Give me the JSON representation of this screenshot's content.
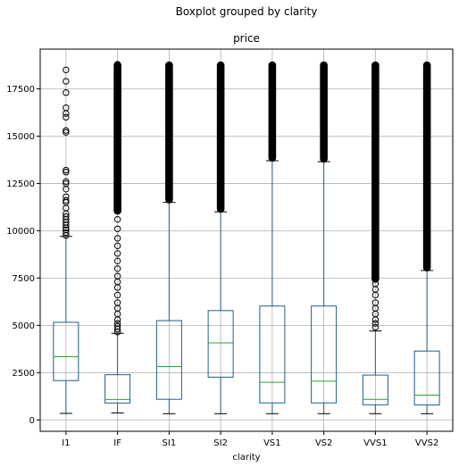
{
  "chart_data": {
    "type": "boxplot",
    "suptitle": "Boxplot grouped by clarity",
    "title": "price",
    "xlabel": "clarity",
    "ylabel": "",
    "ylim": [
      -600,
      19600
    ],
    "yticks": [
      0,
      2500,
      5000,
      7500,
      10000,
      12500,
      15000,
      17500
    ],
    "grid": true,
    "colors": {
      "box": "#1f5f8b",
      "median": "#2ca02c",
      "grid": "#b0b0b0",
      "axis": "#000000"
    },
    "categories": [
      "I1",
      "IF",
      "SI1",
      "SI2",
      "VS1",
      "VS2",
      "VVS1",
      "VVS2"
    ],
    "boxes": [
      {
        "whislo": 345,
        "q1": 2080,
        "med": 3340,
        "q3": 5160,
        "whishi": 9700,
        "outliers": [
          9750,
          9900,
          10050,
          10150,
          10300,
          10450,
          10600,
          10750,
          10900,
          11200,
          11500,
          11600,
          11800,
          12200,
          12500,
          12600,
          13100,
          13200,
          15200,
          15300,
          16000,
          16200,
          16500,
          17300,
          17900,
          18500
        ],
        "dense_from": null
      },
      {
        "whislo": 370,
        "q1": 895,
        "med": 1080,
        "q3": 2390,
        "whishi": 4580,
        "outliers": [
          4650,
          4800,
          4950,
          5100,
          5300,
          5600,
          5900,
          6200,
          6600,
          7000,
          7300,
          7600,
          8000,
          8400,
          8800,
          9200,
          9600,
          10100,
          10600,
          11100,
          11700,
          12300,
          12900,
          13500,
          14100,
          14800,
          15400,
          16000,
          16600,
          17100,
          17600,
          18000,
          18300,
          18600,
          18800
        ],
        "dense_from": 11000
      },
      {
        "whislo": 330,
        "q1": 1090,
        "med": 2820,
        "q3": 5250,
        "whishi": 11500,
        "outliers": [
          16000
        ],
        "dense_from": 11600
      },
      {
        "whislo": 330,
        "q1": 2260,
        "med": 4070,
        "q3": 5780,
        "whishi": 11000,
        "outliers": [],
        "dense_from": 11100
      },
      {
        "whislo": 330,
        "q1": 900,
        "med": 1990,
        "q3": 6020,
        "whishi": 13700,
        "outliers": [],
        "dense_from": 13800
      },
      {
        "whislo": 330,
        "q1": 900,
        "med": 2050,
        "q3": 6020,
        "whishi": 13650,
        "outliers": [],
        "dense_from": 13750
      },
      {
        "whislo": 330,
        "q1": 800,
        "med": 1090,
        "q3": 2370,
        "whishi": 4700,
        "outliers": [
          4900,
          5100,
          5300,
          5600,
          5900,
          6200,
          6600,
          6900,
          7200
        ],
        "dense_from": 7400
      },
      {
        "whislo": 330,
        "q1": 790,
        "med": 1310,
        "q3": 3640,
        "whishi": 7900,
        "outliers": [],
        "dense_from": 8000
      }
    ]
  }
}
